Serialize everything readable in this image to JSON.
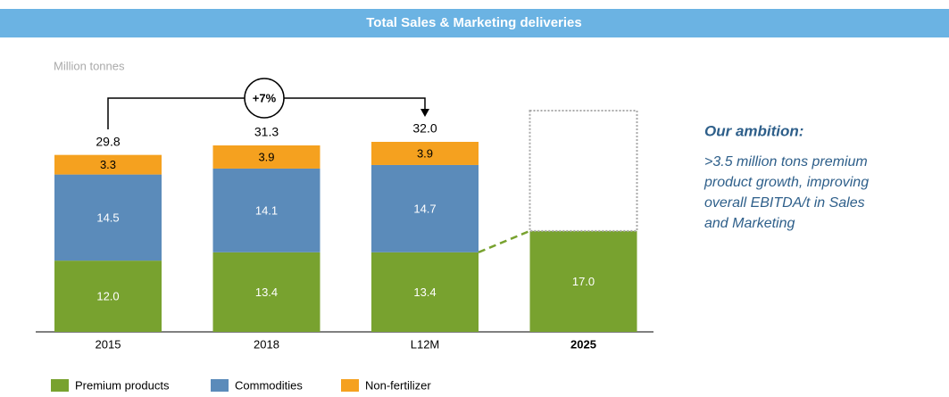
{
  "chart_data": {
    "type": "stacked_bar",
    "title": "Total Sales & Marketing deliveries",
    "unit_label": "Million tonnes",
    "categories": [
      "2015",
      "2018",
      "L12M",
      "2025"
    ],
    "series": [
      {
        "name": "Premium products",
        "color": "#78a22f",
        "values": [
          12.0,
          13.4,
          13.4,
          17.0
        ],
        "value_labels": [
          "12.0",
          "13.4",
          "13.4",
          "17.0"
        ]
      },
      {
        "name": "Commodities",
        "color": "#5b8bba",
        "values": [
          14.5,
          14.1,
          14.7,
          null
        ],
        "value_labels": [
          "14.5",
          "14.1",
          "14.7",
          null
        ]
      },
      {
        "name": "Non-fertilizer",
        "color": "#f5a11f",
        "values": [
          3.3,
          3.9,
          3.9,
          null
        ],
        "value_labels": [
          "3.3",
          "3.9",
          "3.9",
          null
        ]
      }
    ],
    "totals": {
      "values": [
        29.8,
        31.3,
        32.0,
        null
      ],
      "value_labels": [
        "29.8",
        "31.3",
        "32.0",
        null
      ]
    },
    "growth_annotation": "+7%",
    "ambition": {
      "title": "Our ambition:",
      "lines": [
        ">3.5 million tons premium",
        "product growth, improving",
        "overall EBITDA/t in Sales",
        "and Marketing"
      ]
    }
  }
}
